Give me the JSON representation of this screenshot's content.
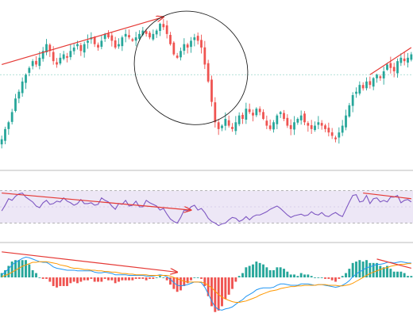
{
  "colors": {
    "up": "#26a69a",
    "down": "#ef5350",
    "rsi_line": "#7e57c2",
    "rsi_band": "#ede7f6",
    "macd_line": "#2196f3",
    "signal_line": "#ff9800",
    "annotation": "#e53935",
    "ellipse": "#222222",
    "price_ref_line": "#9ad5cc",
    "separator": "#bbbbbb"
  },
  "chart_data": [
    {
      "type": "candlestick",
      "title": "",
      "series": [
        {
          "name": "",
          "close": [
            95,
            98,
            100,
            103,
            107,
            109,
            112,
            114,
            116,
            118,
            117,
            119,
            121,
            123,
            121,
            118,
            117,
            119,
            120,
            119,
            121,
            122,
            123,
            121,
            123,
            124,
            125,
            123,
            122,
            124,
            126,
            125,
            124,
            122,
            123,
            125,
            126,
            125,
            124,
            125,
            126,
            127,
            126,
            125,
            126,
            127,
            129,
            128,
            126,
            123,
            120,
            119,
            121,
            123,
            122,
            124,
            125,
            124,
            122,
            117,
            112,
            106,
            100,
            98,
            99,
            101,
            99,
            98,
            100,
            102,
            101,
            104,
            103,
            102,
            104,
            103,
            101,
            99,
            98,
            100,
            102,
            103,
            101,
            99,
            98,
            100,
            101,
            102,
            100,
            99,
            98,
            99,
            100,
            99,
            98,
            97,
            96,
            95,
            97,
            99,
            102,
            105,
            108,
            109,
            111,
            110,
            112,
            111,
            113,
            114,
            113,
            115,
            117,
            116,
            115,
            118,
            119,
            118,
            119,
            120
          ]
        }
      ],
      "annotations": [
        {
          "type": "trendline",
          "from": [
            0,
            117
          ],
          "to": [
            47,
            131
          ],
          "arrow": true
        },
        {
          "type": "ellipse",
          "center": [
            55,
            116
          ],
          "span_x": 26,
          "span_y": 32
        },
        {
          "type": "trendline",
          "from": [
            107,
            114
          ],
          "to": [
            119,
            122
          ],
          "arrow": false
        },
        {
          "type": "reference_line",
          "y": 114
        }
      ],
      "ylim": [
        87,
        136
      ],
      "grid": false
    },
    {
      "type": "line",
      "title": "",
      "series": [
        {
          "name": "",
          "values": [
            45,
            52,
            60,
            58,
            63,
            66,
            67,
            62,
            59,
            56,
            51,
            49,
            55,
            58,
            53,
            54,
            57,
            56,
            61,
            57,
            55,
            52,
            54,
            59,
            54,
            54,
            55,
            52,
            53,
            61,
            58,
            56,
            51,
            47,
            54,
            53,
            58,
            51,
            52,
            57,
            50,
            50,
            58,
            55,
            53,
            51,
            46,
            48,
            41,
            35,
            32,
            30,
            37,
            46,
            45,
            50,
            52,
            46,
            48,
            43,
            36,
            32,
            30,
            27,
            29,
            30,
            34,
            37,
            36,
            32,
            34,
            38,
            34,
            38,
            40,
            40,
            42,
            44,
            47,
            49,
            51,
            48,
            44,
            40,
            37,
            39,
            40,
            41,
            39,
            40,
            44,
            41,
            40,
            43,
            39,
            38,
            41,
            43,
            40,
            38,
            47,
            56,
            64,
            65,
            56,
            57,
            64,
            54,
            60,
            61,
            56,
            58,
            56,
            62,
            62,
            64,
            55,
            58,
            59,
            56
          ]
        }
      ],
      "bands": [
        30,
        70
      ],
      "annotations": [
        {
          "type": "trendline",
          "from": [
            0,
            67
          ],
          "to": [
            55,
            46
          ],
          "arrow": true
        },
        {
          "type": "trendline",
          "from": [
            105,
            67
          ],
          "to": [
            119,
            60
          ],
          "arrow": false
        }
      ],
      "ylim": [
        10,
        90
      ],
      "grid": false
    },
    {
      "type": "macd",
      "title": "",
      "series": [
        {
          "name": "",
          "macd": [
            0.4,
            0.8,
            1.3,
            1.9,
            2.3,
            2.6,
            2.9,
            3.1,
            3.0,
            2.8,
            2.6,
            2.4,
            2.3,
            2.3,
            2.0,
            1.6,
            1.4,
            1.3,
            1.2,
            1.1,
            1.1,
            1.1,
            1.0,
            1.0,
            1.0,
            1.0,
            1.0,
            0.8,
            0.7,
            0.7,
            0.8,
            0.7,
            0.6,
            0.4,
            0.4,
            0.4,
            0.4,
            0.3,
            0.3,
            0.3,
            0.3,
            0.3,
            0.2,
            0.2,
            0.2,
            0.3,
            0.4,
            0.3,
            0.1,
            -0.3,
            -0.8,
            -1.2,
            -1.3,
            -1.2,
            -1.1,
            -0.9,
            -0.7,
            -0.7,
            -0.8,
            -1.5,
            -2.5,
            -3.6,
            -4.5,
            -4.9,
            -5.0,
            -4.8,
            -4.7,
            -4.5,
            -4.1,
            -3.7,
            -3.4,
            -2.9,
            -2.6,
            -2.3,
            -1.9,
            -1.7,
            -1.6,
            -1.6,
            -1.6,
            -1.5,
            -1.2,
            -1.0,
            -1.0,
            -1.1,
            -1.2,
            -1.2,
            -1.2,
            -1.0,
            -1.0,
            -1.0,
            -1.1,
            -1.2,
            -1.1,
            -1.1,
            -1.2,
            -1.3,
            -1.4,
            -1.5,
            -1.4,
            -1.2,
            -0.9,
            -0.5,
            0.1,
            0.5,
            0.9,
            1.1,
            1.5,
            1.6,
            1.8,
            2.0,
            2.0,
            2.1,
            2.3,
            2.3,
            2.2,
            2.3,
            2.4,
            2.3,
            2.2,
            2.2
          ],
          "signal": [
            0.1,
            0.3,
            0.5,
            0.8,
            1.1,
            1.4,
            1.7,
            1.9,
            2.1,
            2.3,
            2.3,
            2.4,
            2.4,
            2.4,
            2.3,
            2.2,
            2.1,
            1.9,
            1.8,
            1.7,
            1.5,
            1.4,
            1.4,
            1.3,
            1.2,
            1.2,
            1.1,
            1.1,
            1.0,
            1.0,
            0.9,
            0.9,
            0.8,
            0.8,
            0.7,
            0.6,
            0.6,
            0.5,
            0.5,
            0.4,
            0.4,
            0.4,
            0.4,
            0.3,
            0.3,
            0.3,
            0.3,
            0.3,
            0.3,
            0.2,
            0.0,
            -0.2,
            -0.4,
            -0.6,
            -0.7,
            -0.7,
            -0.7,
            -0.7,
            -0.7,
            -0.9,
            -1.2,
            -1.6,
            -2.1,
            -2.6,
            -3.0,
            -3.3,
            -3.5,
            -3.7,
            -3.8,
            -3.8,
            -3.7,
            -3.6,
            -3.4,
            -3.2,
            -3.0,
            -2.7,
            -2.5,
            -2.3,
            -2.1,
            -2.0,
            -1.9,
            -1.7,
            -1.6,
            -1.5,
            -1.4,
            -1.4,
            -1.3,
            -1.3,
            -1.2,
            -1.2,
            -1.2,
            -1.2,
            -1.1,
            -1.1,
            -1.1,
            -1.2,
            -1.2,
            -1.2,
            -1.3,
            -1.3,
            -1.2,
            -1.1,
            -0.9,
            -0.6,
            -0.3,
            -0.0,
            0.3,
            0.6,
            0.8,
            1.0,
            1.2,
            1.4,
            1.5,
            1.7,
            1.8,
            1.9,
            2.0,
            2.0,
            2.1,
            2.1
          ]
        }
      ],
      "annotations": [
        {
          "type": "trendline",
          "from": [
            0,
            3.9
          ],
          "to": [
            51,
            0.8
          ],
          "arrow": true
        },
        {
          "type": "trendline",
          "from": [
            109,
            2.8
          ],
          "to": [
            119,
            1.4
          ],
          "arrow": false
        }
      ],
      "ylim": [
        -5.8,
        4.6
      ],
      "grid": false
    }
  ]
}
